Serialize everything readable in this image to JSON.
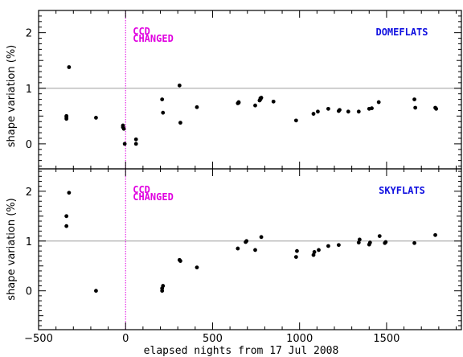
{
  "colors": {
    "ccd": "#e000e0",
    "panel_label": "#1010e0",
    "reference_line": "#b0b0b0",
    "points": "#000000"
  },
  "xlabel": "elapsed nights from 17 Jul 2008",
  "xlim": [
    -500,
    1930
  ],
  "xticks": [
    -500,
    0,
    500,
    1000,
    1500
  ],
  "xtick_labels": [
    "−500",
    "0",
    "500",
    "1000",
    "1500"
  ],
  "ccd_event": {
    "x": 0,
    "line1": "CCD",
    "line2": "CHANGED"
  },
  "chart_data": [
    {
      "type": "scatter",
      "panel_label": "DOMEFLATS",
      "ylabel": "shape variation (%)",
      "ylim": [
        -0.45,
        2.4
      ],
      "yticks": [
        0,
        1,
        2
      ],
      "reference_y": 1,
      "x": [
        -340,
        -340,
        -340,
        -325,
        -170,
        -15,
        -15,
        -10,
        -5,
        60,
        60,
        210,
        215,
        310,
        315,
        410,
        645,
        650,
        650,
        745,
        770,
        775,
        775,
        780,
        850,
        980,
        1080,
        1105,
        1165,
        1225,
        1230,
        1280,
        1340,
        1400,
        1415,
        1455,
        1660,
        1665,
        1780,
        1785
      ],
      "y": [
        0.45,
        0.48,
        0.5,
        1.38,
        0.47,
        0.3,
        0.33,
        0.27,
        0.0,
        0.0,
        0.08,
        0.8,
        0.56,
        1.05,
        0.38,
        0.66,
        0.73,
        0.74,
        0.75,
        0.69,
        0.78,
        0.8,
        0.82,
        0.83,
        0.76,
        0.42,
        0.54,
        0.58,
        0.63,
        0.59,
        0.61,
        0.58,
        0.58,
        0.63,
        0.64,
        0.75,
        0.8,
        0.65,
        0.65,
        0.63
      ]
    },
    {
      "type": "scatter",
      "panel_label": "SKYFLATS",
      "ylabel": "shape variation (%)",
      "ylim": [
        -0.78,
        2.45
      ],
      "yticks": [
        0,
        1,
        2
      ],
      "reference_y": 1,
      "x": [
        -340,
        -340,
        -325,
        -170,
        210,
        210,
        215,
        310,
        315,
        410,
        645,
        690,
        695,
        745,
        780,
        980,
        985,
        1080,
        1085,
        1110,
        1165,
        1225,
        1340,
        1345,
        1400,
        1405,
        1460,
        1490,
        1495,
        1660,
        1780
      ],
      "y": [
        1.3,
        1.5,
        1.97,
        0.0,
        0.0,
        0.05,
        0.1,
        0.62,
        0.6,
        0.47,
        0.85,
        0.98,
        1.0,
        0.82,
        1.08,
        0.68,
        0.8,
        0.72,
        0.78,
        0.82,
        0.9,
        0.92,
        0.97,
        1.03,
        0.93,
        0.97,
        1.1,
        0.96,
        0.98,
        0.96,
        1.12
      ]
    }
  ]
}
